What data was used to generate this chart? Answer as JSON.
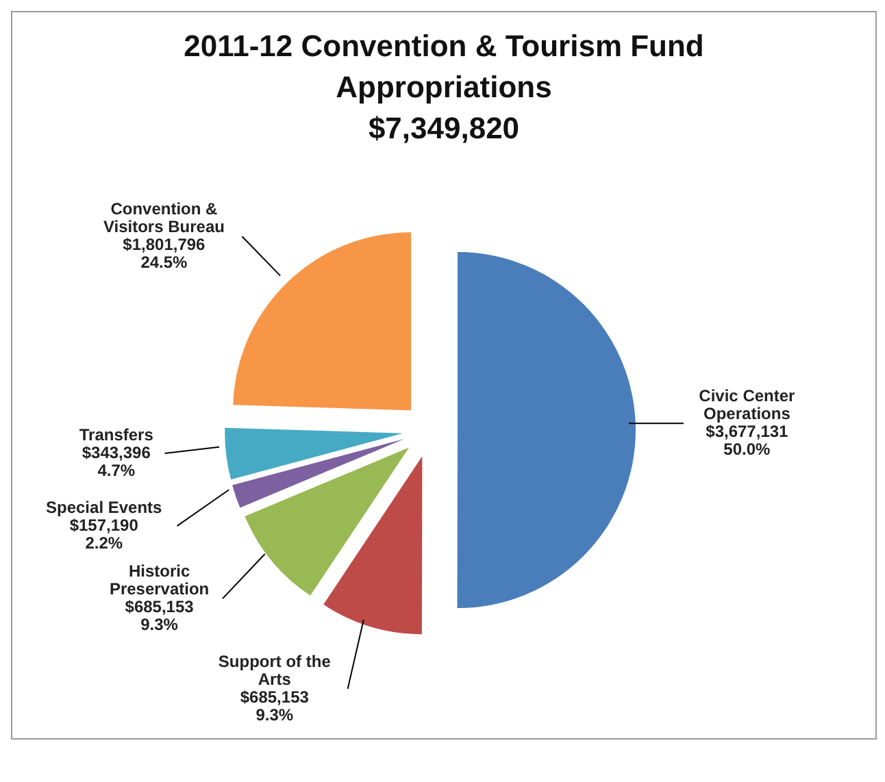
{
  "chart_data": {
    "type": "pie",
    "title": "2011-12 Convention & Tourism Fund Appropriations",
    "subtitle": "$7,349,820",
    "categories": [
      "Civic Center Operations",
      "Support of the Arts",
      "Historic Preservation",
      "Special Events",
      "Transfers",
      "Convention & Visitors Bureau"
    ],
    "values": [
      3677131,
      685153,
      685153,
      157190,
      343396,
      1801796
    ],
    "colors": [
      "#4a7ebb",
      "#be4b48",
      "#98b954",
      "#7d60a0",
      "#46aac5",
      "#f79646"
    ],
    "value_labels": [
      "$3,677,131\n50.0%",
      "$685,153\n9.3%",
      "$685,153\n9.3%",
      "$157,190\n2.2%",
      "$343,396\n4.7%",
      "$1,801,796\n24.5%"
    ],
    "legend": false
  }
}
